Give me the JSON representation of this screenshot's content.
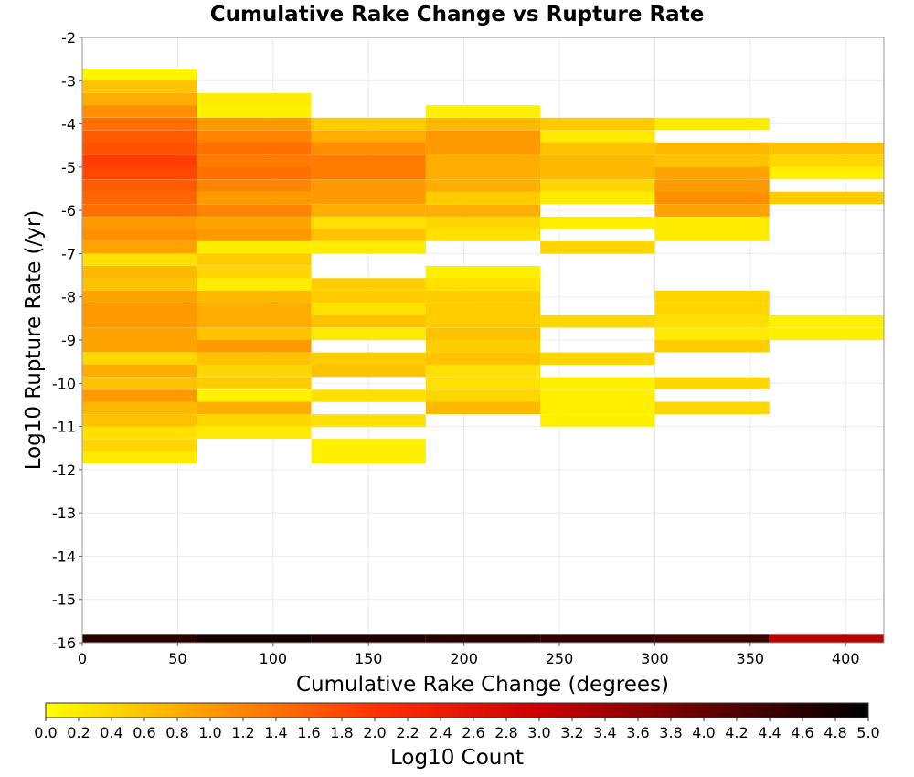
{
  "chart_data": {
    "type": "heatmap",
    "title": "Cumulative Rake Change vs Rupture Rate",
    "xlabel": "Cumulative Rake Change (degrees)",
    "ylabel": "Log10 Rupture Rate (/yr)",
    "xlim": [
      0,
      420
    ],
    "ylim": [
      -16,
      -2
    ],
    "x_ticks": [
      "0",
      "50",
      "100",
      "150",
      "200",
      "250",
      "300",
      "350",
      "400"
    ],
    "x_tick_values": [
      0,
      50,
      100,
      150,
      200,
      250,
      300,
      350,
      400
    ],
    "y_ticks": [
      "-2",
      "-3",
      "-4",
      "-5",
      "-6",
      "-7",
      "-8",
      "-9",
      "-10",
      "-11",
      "-12",
      "-13",
      "-14",
      "-15",
      "-16"
    ],
    "y_tick_values": [
      -2,
      -3,
      -4,
      -5,
      -6,
      -7,
      -8,
      -9,
      -10,
      -11,
      -12,
      -13,
      -14,
      -15,
      -16
    ],
    "grid": true,
    "x_bin_edges": [
      0,
      60,
      120,
      180,
      240,
      300,
      360,
      420
    ],
    "y_bin_height": 0.2857,
    "colorbar": {
      "label": "Log10 Count",
      "range": [
        0.0,
        5.0
      ],
      "ticks": [
        "0.0",
        "0.2",
        "0.4",
        "0.6",
        "0.8",
        "1.0",
        "1.2",
        "1.4",
        "1.6",
        "1.8",
        "2.0",
        "2.2",
        "2.4",
        "2.6",
        "2.8",
        "3.0",
        "3.2",
        "3.4",
        "3.6",
        "3.8",
        "4.0",
        "4.2",
        "4.4",
        "4.6",
        "4.8",
        "5.0"
      ],
      "position": "bottom",
      "colors": [
        "#ffff00",
        "#ff9900",
        "#ff3300",
        "#cc0000",
        "#660000",
        "#000000"
      ]
    },
    "columns": [
      {
        "x_range": [
          0,
          60
        ],
        "bins": [
          {
            "y": -2.86,
            "v": 0.1
          },
          {
            "y": -3.14,
            "v": 0.6
          },
          {
            "y": -3.43,
            "v": 0.8
          },
          {
            "y": -3.71,
            "v": 1.1
          },
          {
            "y": -4.0,
            "v": 1.4
          },
          {
            "y": -4.29,
            "v": 1.6
          },
          {
            "y": -4.57,
            "v": 1.7
          },
          {
            "y": -4.86,
            "v": 1.9
          },
          {
            "y": -5.14,
            "v": 1.8
          },
          {
            "y": -5.43,
            "v": 1.6
          },
          {
            "y": -5.71,
            "v": 1.5
          },
          {
            "y": -6.0,
            "v": 1.4
          },
          {
            "y": -6.29,
            "v": 1.0
          },
          {
            "y": -6.57,
            "v": 1.1
          },
          {
            "y": -6.86,
            "v": 0.9
          },
          {
            "y": -7.14,
            "v": 0.3
          },
          {
            "y": -7.43,
            "v": 0.7
          },
          {
            "y": -7.71,
            "v": 0.6
          },
          {
            "y": -8.0,
            "v": 0.9
          },
          {
            "y": -8.29,
            "v": 1.0
          },
          {
            "y": -8.57,
            "v": 1.0
          },
          {
            "y": -8.86,
            "v": 0.9
          },
          {
            "y": -9.14,
            "v": 0.9
          },
          {
            "y": -9.43,
            "v": 0.4
          },
          {
            "y": -9.71,
            "v": 0.8
          },
          {
            "y": -10.0,
            "v": 0.6
          },
          {
            "y": -10.29,
            "v": 1.0
          },
          {
            "y": -10.57,
            "v": 0.7
          },
          {
            "y": -10.86,
            "v": 0.6
          },
          {
            "y": -11.14,
            "v": 0.3
          },
          {
            "y": -11.43,
            "v": 0.4
          },
          {
            "y": -11.71,
            "v": 0.2
          },
          {
            "y": -15.96,
            "v": 4.6
          }
        ]
      },
      {
        "x_range": [
          60,
          120
        ],
        "bins": [
          {
            "y": -3.43,
            "v": 0.2
          },
          {
            "y": -3.71,
            "v": 0.15
          },
          {
            "y": -4.0,
            "v": 1.0
          },
          {
            "y": -4.29,
            "v": 1.2
          },
          {
            "y": -4.57,
            "v": 1.4
          },
          {
            "y": -4.86,
            "v": 1.3
          },
          {
            "y": -5.14,
            "v": 1.4
          },
          {
            "y": -5.43,
            "v": 1.2
          },
          {
            "y": -5.71,
            "v": 1.0
          },
          {
            "y": -6.0,
            "v": 1.2
          },
          {
            "y": -6.29,
            "v": 0.9
          },
          {
            "y": -6.57,
            "v": 1.0
          },
          {
            "y": -6.86,
            "v": 0.2
          },
          {
            "y": -7.14,
            "v": 0.5
          },
          {
            "y": -7.43,
            "v": 0.4
          },
          {
            "y": -7.71,
            "v": 0.2
          },
          {
            "y": -8.0,
            "v": 0.7
          },
          {
            "y": -8.29,
            "v": 0.8
          },
          {
            "y": -8.57,
            "v": 0.8
          },
          {
            "y": -8.86,
            "v": 0.6
          },
          {
            "y": -9.14,
            "v": 1.0
          },
          {
            "y": -9.43,
            "v": 0.6
          },
          {
            "y": -9.71,
            "v": 0.4
          },
          {
            "y": -10.0,
            "v": 0.5
          },
          {
            "y": -10.29,
            "v": 0.15
          },
          {
            "y": -10.57,
            "v": 0.8
          },
          {
            "y": -10.86,
            "v": 0.4
          },
          {
            "y": -11.14,
            "v": 0.2
          },
          {
            "y": -15.96,
            "v": 4.8
          }
        ]
      },
      {
        "x_range": [
          120,
          180
        ],
        "bins": [
          {
            "y": -4.0,
            "v": 0.5
          },
          {
            "y": -4.29,
            "v": 0.8
          },
          {
            "y": -4.57,
            "v": 1.1
          },
          {
            "y": -4.86,
            "v": 1.3
          },
          {
            "y": -5.14,
            "v": 1.3
          },
          {
            "y": -5.43,
            "v": 1.0
          },
          {
            "y": -5.71,
            "v": 1.0
          },
          {
            "y": -6.0,
            "v": 0.8
          },
          {
            "y": -6.29,
            "v": 0.3
          },
          {
            "y": -6.57,
            "v": 0.6
          },
          {
            "y": -6.86,
            "v": 0.2
          },
          {
            "y": -7.71,
            "v": 0.5
          },
          {
            "y": -8.0,
            "v": 0.5
          },
          {
            "y": -8.29,
            "v": 0.3
          },
          {
            "y": -8.57,
            "v": 0.6
          },
          {
            "y": -8.86,
            "v": 0.2
          },
          {
            "y": -9.43,
            "v": 0.5
          },
          {
            "y": -9.71,
            "v": 0.6
          },
          {
            "y": -10.29,
            "v": 0.3
          },
          {
            "y": -10.86,
            "v": 0.3
          },
          {
            "y": -11.43,
            "v": 0.15
          },
          {
            "y": -11.71,
            "v": 0.15
          },
          {
            "y": -15.96,
            "v": 4.7
          }
        ]
      },
      {
        "x_range": [
          180,
          240
        ],
        "bins": [
          {
            "y": -3.71,
            "v": 0.15
          },
          {
            "y": -4.0,
            "v": 0.7
          },
          {
            "y": -4.29,
            "v": 1.0
          },
          {
            "y": -4.57,
            "v": 1.0
          },
          {
            "y": -4.86,
            "v": 0.8
          },
          {
            "y": -5.14,
            "v": 0.8
          },
          {
            "y": -5.43,
            "v": 0.8
          },
          {
            "y": -5.71,
            "v": 0.5
          },
          {
            "y": -6.0,
            "v": 0.8
          },
          {
            "y": -6.29,
            "v": 0.4
          },
          {
            "y": -6.57,
            "v": 0.3
          },
          {
            "y": -7.43,
            "v": 0.15
          },
          {
            "y": -7.71,
            "v": 0.3
          },
          {
            "y": -8.0,
            "v": 0.5
          },
          {
            "y": -8.29,
            "v": 0.5
          },
          {
            "y": -8.57,
            "v": 0.5
          },
          {
            "y": -8.86,
            "v": 0.6
          },
          {
            "y": -9.14,
            "v": 0.5
          },
          {
            "y": -9.43,
            "v": 0.6
          },
          {
            "y": -9.71,
            "v": 0.3
          },
          {
            "y": -10.0,
            "v": 0.3
          },
          {
            "y": -10.29,
            "v": 0.4
          },
          {
            "y": -10.57,
            "v": 0.7
          },
          {
            "y": -15.96,
            "v": 4.6
          }
        ]
      },
      {
        "x_range": [
          240,
          300
        ],
        "bins": [
          {
            "y": -4.0,
            "v": 0.5
          },
          {
            "y": -4.29,
            "v": 0.2
          },
          {
            "y": -4.57,
            "v": 0.6
          },
          {
            "y": -4.86,
            "v": 0.7
          },
          {
            "y": -5.14,
            "v": 0.7
          },
          {
            "y": -5.43,
            "v": 0.4
          },
          {
            "y": -5.71,
            "v": 0.2
          },
          {
            "y": -6.29,
            "v": 0.15
          },
          {
            "y": -6.86,
            "v": 0.4
          },
          {
            "y": -8.57,
            "v": 0.4
          },
          {
            "y": -9.43,
            "v": 0.4
          },
          {
            "y": -10.0,
            "v": 0.15
          },
          {
            "y": -10.29,
            "v": 0.15
          },
          {
            "y": -10.57,
            "v": 0.15
          },
          {
            "y": -10.86,
            "v": 0.15
          },
          {
            "y": -15.96,
            "v": 4.5
          }
        ]
      },
      {
        "x_range": [
          300,
          360
        ],
        "bins": [
          {
            "y": -4.0,
            "v": 0.2
          },
          {
            "y": -4.57,
            "v": 0.7
          },
          {
            "y": -4.86,
            "v": 0.6
          },
          {
            "y": -5.14,
            "v": 0.9
          },
          {
            "y": -5.43,
            "v": 1.0
          },
          {
            "y": -5.71,
            "v": 1.1
          },
          {
            "y": -6.0,
            "v": 0.9
          },
          {
            "y": -6.29,
            "v": 0.2
          },
          {
            "y": -6.57,
            "v": 0.2
          },
          {
            "y": -8.0,
            "v": 0.4
          },
          {
            "y": -8.29,
            "v": 0.4
          },
          {
            "y": -8.57,
            "v": 0.3
          },
          {
            "y": -8.86,
            "v": 0.2
          },
          {
            "y": -9.14,
            "v": 0.5
          },
          {
            "y": -10.0,
            "v": 0.4
          },
          {
            "y": -10.57,
            "v": 0.4
          },
          {
            "y": -15.96,
            "v": 4.4
          }
        ]
      },
      {
        "x_range": [
          360,
          420
        ],
        "bins": [
          {
            "y": -4.57,
            "v": 0.6
          },
          {
            "y": -4.86,
            "v": 0.4
          },
          {
            "y": -5.14,
            "v": 0.15
          },
          {
            "y": -5.71,
            "v": 0.5
          },
          {
            "y": -8.57,
            "v": 0.15
          },
          {
            "y": -8.86,
            "v": 0.15
          },
          {
            "y": -15.96,
            "v": 3.2
          }
        ]
      }
    ]
  }
}
